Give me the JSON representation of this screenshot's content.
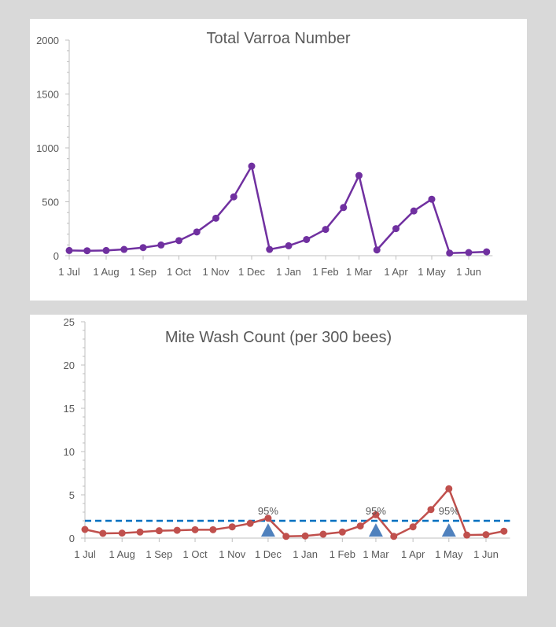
{
  "colors": {
    "varroa": "#7030a0",
    "wash": "#c0504d",
    "threshold": "#0070c0",
    "treatment": "#4f81bd",
    "axis": "#bfbfbf"
  },
  "chart_data": [
    {
      "type": "line",
      "title": "Total Varroa Number",
      "xlabel": "",
      "ylabel": "",
      "ylim": [
        0,
        2000
      ],
      "yticks": [
        0,
        500,
        1000,
        1500,
        2000
      ],
      "xticks": [
        "1 Jul",
        "1 Aug",
        "1 Sep",
        "1 Oct",
        "1 Nov",
        "1 Dec",
        "1 Jan",
        "1 Feb",
        "1 Mar",
        "1 Apr",
        "1 May",
        "1 Jun"
      ],
      "xtick_days": [
        0,
        31,
        62,
        92,
        123,
        153,
        184,
        215,
        243,
        274,
        304,
        335
      ],
      "xlim_days": [
        0,
        355
      ],
      "grid": false,
      "series": [
        {
          "name": "Total Varroa",
          "x_days": [
            0,
            15,
            31,
            46,
            62,
            77,
            92,
            107,
            123,
            138,
            153,
            168,
            184,
            199,
            215,
            230,
            243,
            258,
            274,
            289,
            304,
            319,
            335,
            350
          ],
          "values": [
            48,
            46,
            48,
            58,
            75,
            99,
            140,
            220,
            348,
            546,
            831,
            58,
            92,
            150,
            244,
            447,
            744,
            53,
            251,
            415,
            524,
            24,
            29,
            36
          ]
        }
      ]
    },
    {
      "type": "line",
      "title": "Mite Wash Count (per 300 bees)",
      "xlabel": "",
      "ylabel": "",
      "ylim": [
        0,
        25
      ],
      "yticks": [
        0,
        5,
        10,
        15,
        20,
        25
      ],
      "xticks": [
        "1 Jul",
        "1 Aug",
        "1 Sep",
        "1 Oct",
        "1 Nov",
        "1 Dec",
        "1 Jan",
        "1 Feb",
        "1 Mar",
        "1 Apr",
        "1 May",
        "1 Jun"
      ],
      "xtick_days": [
        0,
        31,
        62,
        92,
        123,
        153,
        184,
        215,
        243,
        274,
        304,
        335
      ],
      "xlim_days": [
        0,
        355
      ],
      "grid": false,
      "series": [
        {
          "name": "Mite wash",
          "x_days": [
            0,
            15,
            31,
            46,
            62,
            77,
            92,
            107,
            123,
            138,
            153,
            168,
            184,
            199,
            215,
            230,
            243,
            258,
            274,
            289,
            304,
            319,
            335,
            350
          ],
          "values": [
            1.0,
            0.55,
            0.58,
            0.7,
            0.85,
            0.9,
            0.97,
            0.97,
            1.3,
            1.7,
            2.3,
            0.2,
            0.25,
            0.45,
            0.7,
            1.4,
            2.7,
            0.2,
            1.3,
            3.3,
            5.7,
            0.35,
            0.4,
            0.8
          ]
        }
      ],
      "threshold": {
        "value": 2
      },
      "treatments": [
        {
          "x_day": 153,
          "value": 0.9,
          "label": "95%"
        },
        {
          "x_day": 243,
          "value": 0.9,
          "label": "95%"
        },
        {
          "x_day": 304,
          "value": 0.9,
          "label": "95%"
        }
      ]
    }
  ]
}
